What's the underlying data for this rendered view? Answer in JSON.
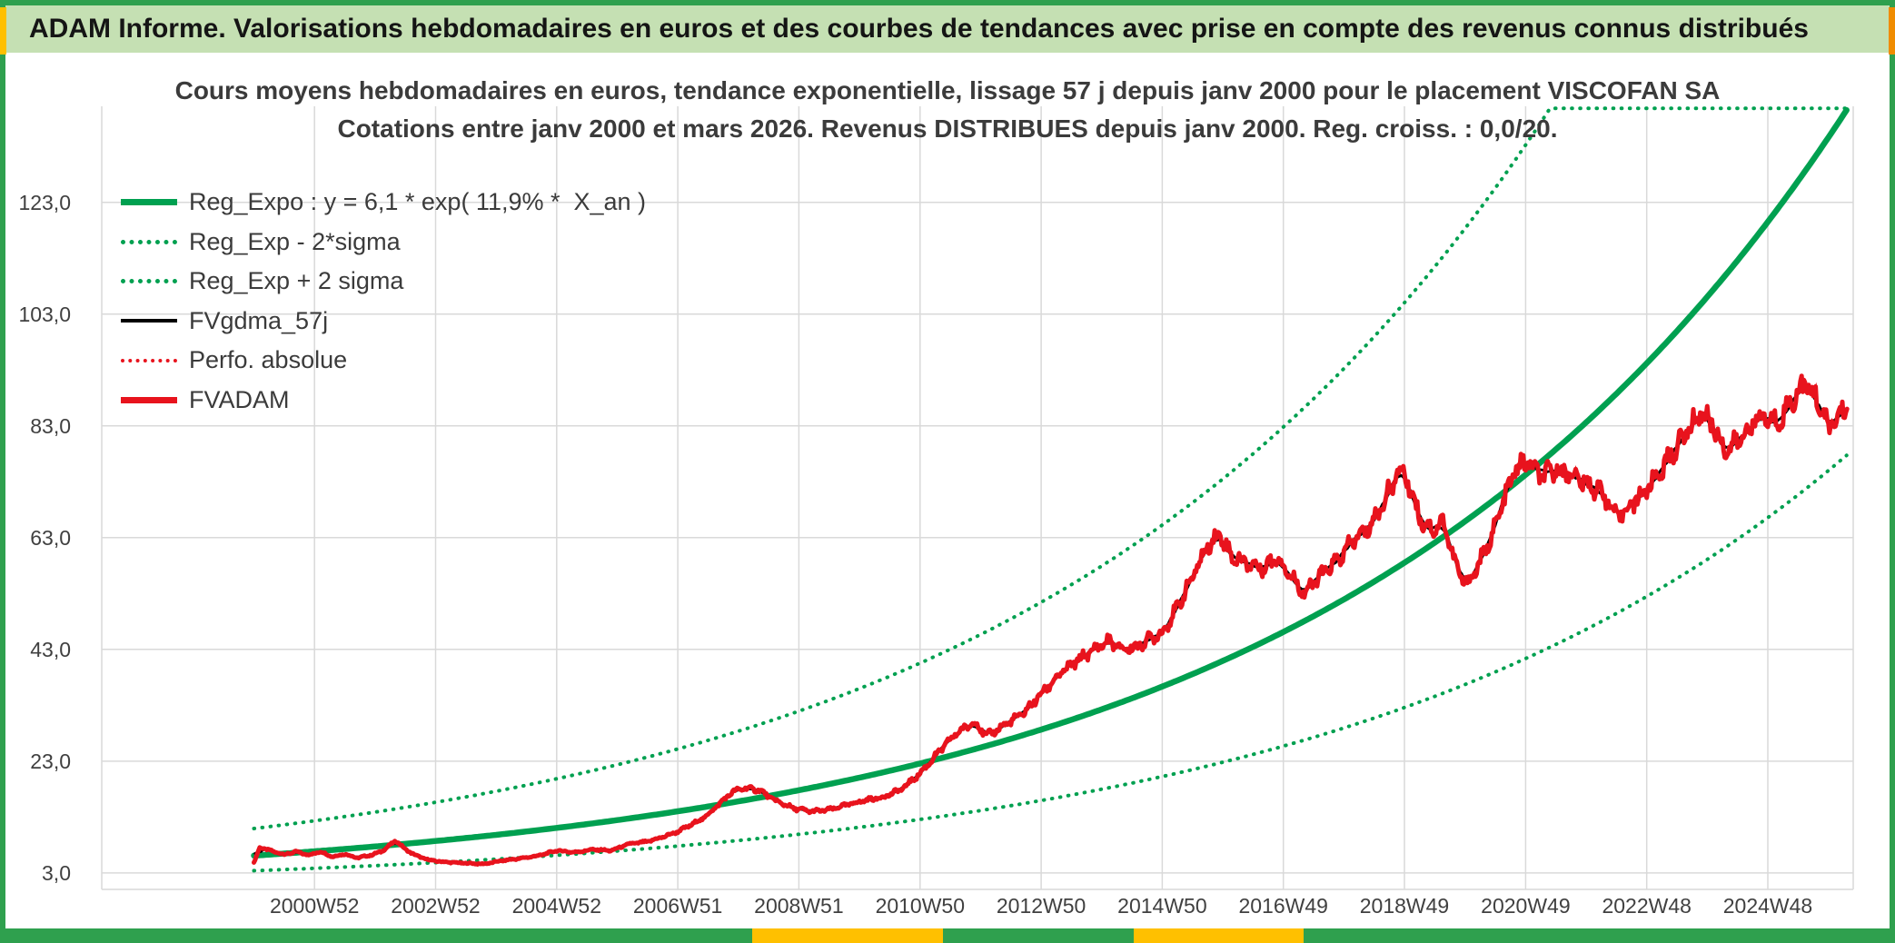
{
  "header": {
    "title": "ADAM Informe. Valorisations hebdomadaires en euros et des courbes de tendances avec prise en compte des revenus connus distribués"
  },
  "chart_data": {
    "type": "line",
    "title_lines": [
      "Cours moyens hebdomadaires en euros, tendance exponentielle, lissage 57 j depuis janv 2000 pour le placement VISCOFAN SA",
      "Cotations entre janv 2000 et mars 2026. Revenus DISTRIBUES depuis janv 2000. Reg. croiss. : 0,0/20."
    ],
    "legend": [
      {
        "label": "Reg_Expo : y = 6,1 * exp( 11,9% *  X_an )",
        "style": "solid-green"
      },
      {
        "label": "Reg_Exp - 2*sigma",
        "style": "dot-green"
      },
      {
        "label": "Reg_Exp + 2 sigma",
        "style": "dot-green"
      },
      {
        "label": "FVgdma_57j",
        "style": "solid-black"
      },
      {
        "label": "Perfo. absolue",
        "style": "dot-red"
      },
      {
        "label": "FVADAM",
        "style": "solid-red"
      }
    ],
    "x_axis": {
      "unit": "years since janv 2000",
      "t_start": 0,
      "t_end": 26.35,
      "ticks": [
        {
          "t": 1,
          "label": "2000W52"
        },
        {
          "t": 3,
          "label": "2002W52"
        },
        {
          "t": 5,
          "label": "2004W52"
        },
        {
          "t": 7,
          "label": "2006W51"
        },
        {
          "t": 9,
          "label": "2008W51"
        },
        {
          "t": 11,
          "label": "2010W50"
        },
        {
          "t": 13,
          "label": "2012W50"
        },
        {
          "t": 15,
          "label": "2014W50"
        },
        {
          "t": 17,
          "label": "2016W49"
        },
        {
          "t": 19,
          "label": "2018W49"
        },
        {
          "t": 21,
          "label": "2020W49"
        },
        {
          "t": 23,
          "label": "2022W48"
        },
        {
          "t": 25,
          "label": "2024W48"
        }
      ]
    },
    "y_axis": {
      "min": 0,
      "max": 140.2,
      "ticks": [
        {
          "v": 3,
          "label": "3,0"
        },
        {
          "v": 23,
          "label": "23,0"
        },
        {
          "v": 43,
          "label": "43,0"
        },
        {
          "v": 63,
          "label": "63,0"
        },
        {
          "v": 83,
          "label": "83,0"
        },
        {
          "v": 103,
          "label": "103,0"
        },
        {
          "v": 123,
          "label": "123,0"
        }
      ]
    },
    "regression": {
      "a": 6.1,
      "k": 0.119,
      "k_label_pct": "11,9%",
      "two_sigma": 0.585,
      "t_end": 26.35,
      "clip_max": 139.8
    },
    "fvadam": {
      "t": [
        0,
        0.1,
        0.3,
        0.5,
        0.7,
        0.9,
        1.1,
        1.3,
        1.5,
        1.7,
        1.9,
        2.1,
        2.35,
        2.5,
        2.7,
        2.9,
        3.1,
        3.4,
        3.8,
        4.1,
        4.4,
        4.7,
        5.0,
        5.3,
        5.6,
        5.9,
        6.2,
        6.5,
        6.8,
        7.0,
        7.2,
        7.45,
        7.65,
        7.9,
        8.1,
        8.35,
        8.6,
        8.9,
        9.2,
        9.5,
        9.8,
        10.1,
        10.4,
        10.7,
        11.0,
        11.3,
        11.6,
        11.9,
        12.1,
        12.4,
        12.7,
        13.0,
        13.3,
        13.6,
        13.85,
        14.1,
        14.35,
        14.6,
        14.8,
        15.0,
        15.25,
        15.5,
        15.75,
        15.95,
        16.15,
        16.4,
        16.65,
        16.9,
        17.1,
        17.35,
        17.55,
        17.75,
        17.95,
        18.15,
        18.35,
        18.55,
        18.75,
        18.95,
        19.1,
        19.3,
        19.5,
        19.65,
        19.8,
        20.0,
        20.2,
        20.45,
        20.65,
        20.85,
        21.05,
        21.25,
        21.5,
        21.75,
        22.0,
        22.25,
        22.5,
        22.75,
        23.0,
        23.3,
        23.6,
        23.9,
        24.1,
        24.3,
        24.55,
        24.75,
        24.95,
        25.15,
        25.4,
        25.6,
        25.8,
        26.0,
        26.15,
        26.3
      ],
      "v": [
        4.8,
        7.6,
        6.9,
        6.3,
        6.8,
        6.2,
        6.8,
        5.9,
        6.4,
        5.7,
        6.1,
        6.8,
        8.8,
        7.2,
        6.0,
        5.3,
        5.0,
        4.8,
        4.6,
        5.2,
        5.6,
        6.1,
        7.0,
        6.7,
        7.2,
        7.0,
        8.2,
        8.6,
        9.6,
        10.4,
        11.5,
        13.0,
        15.0,
        17.5,
        18.2,
        17.8,
        16.0,
        14.6,
        14.0,
        14.3,
        15.2,
        16.0,
        16.6,
        18.0,
        20.8,
        24.5,
        28.0,
        30.0,
        27.5,
        29.5,
        31.5,
        35.0,
        38.5,
        41.0,
        42.8,
        44.5,
        43.0,
        43.5,
        45.0,
        46.0,
        50.5,
        56.0,
        61.5,
        63.7,
        59.5,
        58.5,
        57.5,
        59.5,
        56.5,
        53.0,
        55.5,
        57.5,
        59.5,
        62.5,
        64.0,
        67.0,
        71.5,
        75.5,
        71.5,
        65.5,
        64.5,
        66.0,
        59.5,
        54.5,
        57.5,
        63.5,
        70.0,
        75.5,
        76.5,
        74.0,
        75.0,
        74.5,
        72.5,
        71.5,
        66.5,
        69.0,
        71.5,
        76.0,
        81.0,
        85.5,
        83.0,
        78.5,
        80.5,
        83.5,
        84.5,
        83.5,
        87.5,
        90.5,
        88.0,
        82.5,
        84.5,
        86.5
      ]
    },
    "smoothing": {
      "ma_window_weeks": 13,
      "label_days": 57
    },
    "colors": {
      "frame": "#2FA04E",
      "header_bg": "#C5E0B3",
      "accent_yellow": "#FFC000",
      "accent_orange": "#F08C00",
      "green": "#00A050",
      "red": "#E8131D",
      "black": "#000000",
      "grid": "#D9D9D9",
      "axis_text": "#404040"
    },
    "layout_hints": {
      "grid": true,
      "legend_position": "top-left"
    }
  }
}
